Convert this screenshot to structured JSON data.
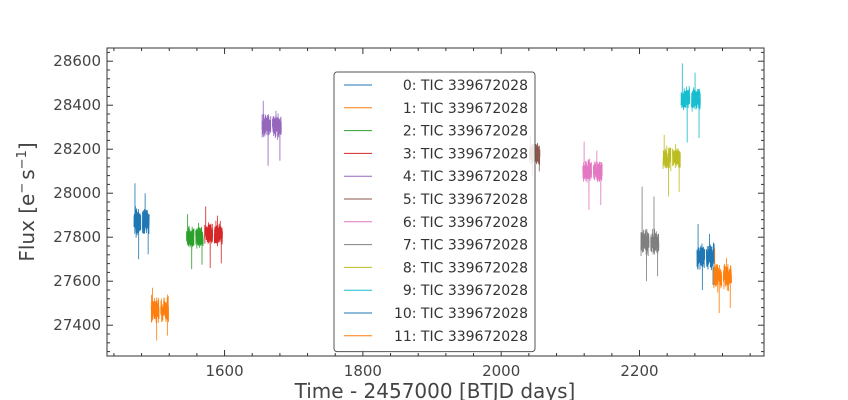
{
  "chart_data": {
    "type": "line",
    "xlabel": "Time - 2457000 [BTJD days]",
    "ylabel_base": "Flux [e",
    "ylabel_sup1": "−",
    "ylabel_mid": "s",
    "ylabel_sup2": "−1",
    "ylabel_end": "]",
    "xlim": [
      1430,
      2380
    ],
    "ylim": [
      27260,
      28660
    ],
    "xticks": [
      1600,
      1800,
      2000,
      2200
    ],
    "yticks": [
      27400,
      27600,
      27800,
      28000,
      28200,
      28400,
      28600
    ],
    "legend_position": "center",
    "series": [
      {
        "name": "0: TIC 339672028",
        "color": "#1f77b4",
        "segments": [
          {
            "x0": 1469,
            "x1": 1491,
            "level": 27870,
            "spread": 45,
            "min": 27700,
            "max": 28045
          }
        ]
      },
      {
        "name": "1: TIC 339672028",
        "color": "#ff7f0e",
        "segments": [
          {
            "x0": 1494,
            "x1": 1519,
            "level": 27470,
            "spread": 45,
            "min": 27330,
            "max": 27570
          }
        ]
      },
      {
        "name": "2: TIC 339672028",
        "color": "#2ca02c",
        "segments": [
          {
            "x0": 1545,
            "x1": 1569,
            "level": 27800,
            "spread": 40,
            "min": 27655,
            "max": 27905
          }
        ]
      },
      {
        "name": "3: TIC 339672028",
        "color": "#d62728",
        "segments": [
          {
            "x0": 1571,
            "x1": 1597,
            "level": 27815,
            "spread": 42,
            "min": 27660,
            "max": 27940
          }
        ]
      },
      {
        "name": "4: TIC 339672028",
        "color": "#9467bd",
        "segments": [
          {
            "x0": 1654,
            "x1": 1682,
            "level": 28310,
            "spread": 45,
            "min": 28125,
            "max": 28420
          }
        ]
      },
      {
        "name": "5: TIC 339672028",
        "color": "#8c564b",
        "segments": [
          {
            "x0": 2041,
            "x1": 2056,
            "level": 28180,
            "spread": 38,
            "min": 28080,
            "max": 28260
          }
        ]
      },
      {
        "name": "6: TIC 339672028",
        "color": "#e377c2",
        "segments": [
          {
            "x0": 2118,
            "x1": 2146,
            "level": 28100,
            "spread": 42,
            "min": 27925,
            "max": 28235
          }
        ]
      },
      {
        "name": "7: TIC 339672028",
        "color": "#7f7f7f",
        "segments": [
          {
            "x0": 2202,
            "x1": 2228,
            "level": 27780,
            "spread": 45,
            "min": 27600,
            "max": 28030
          }
        ]
      },
      {
        "name": "8: TIC 339672028",
        "color": "#bcbd22",
        "segments": [
          {
            "x0": 2234,
            "x1": 2259,
            "level": 28160,
            "spread": 42,
            "min": 27985,
            "max": 28265
          }
        ]
      },
      {
        "name": "9: TIC 339672028",
        "color": "#17becf",
        "segments": [
          {
            "x0": 2260,
            "x1": 2288,
            "level": 28430,
            "spread": 42,
            "min": 28230,
            "max": 28590
          }
        ]
      },
      {
        "name": "10: TIC 339672028",
        "color": "#1f77b4",
        "segments": [
          {
            "x0": 2283,
            "x1": 2308,
            "level": 27710,
            "spread": 45,
            "min": 27560,
            "max": 27860
          }
        ]
      },
      {
        "name": "11: TIC 339672028",
        "color": "#ff7f0e",
        "segments": [
          {
            "x0": 2307,
            "x1": 2333,
            "level": 27620,
            "spread": 45,
            "min": 27455,
            "max": 27750
          }
        ]
      }
    ]
  }
}
